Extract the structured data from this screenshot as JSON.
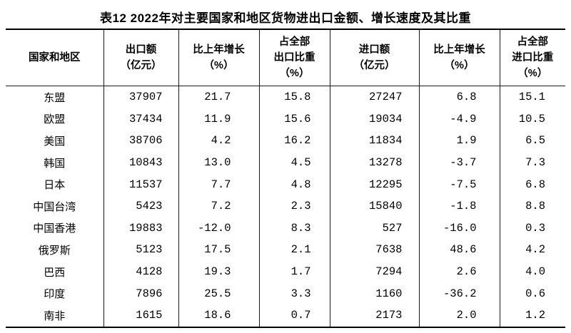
{
  "title": "表12  2022年对主要国家和地区货物进出口金额、增长速度及其比重",
  "colors": {
    "text": "#000000",
    "background": "#ffffff",
    "border": "#000000"
  },
  "table": {
    "row_keys": [
      "region",
      "export_amount",
      "export_growth",
      "export_share",
      "import_amount",
      "import_growth",
      "import_share"
    ],
    "headers": [
      {
        "lines": [
          "国家和地区"
        ]
      },
      {
        "lines": [
          "出口额",
          "（亿元）"
        ]
      },
      {
        "lines": [
          "比上年增长",
          "（%）"
        ]
      },
      {
        "lines": [
          "占全部",
          "出口比重",
          "（%）"
        ]
      },
      {
        "lines": [
          "进口额",
          "（亿元）"
        ]
      },
      {
        "lines": [
          "比上年增长",
          "（%）"
        ]
      },
      {
        "lines": [
          "占全部",
          "进口比重",
          "（%）"
        ]
      }
    ],
    "rows": [
      {
        "region": "东盟",
        "export_amount": "37907",
        "export_growth": "21.7",
        "export_share": "15.8",
        "import_amount": "27247",
        "import_growth": "6.8",
        "import_share": "15.1"
      },
      {
        "region": "欧盟",
        "export_amount": "37434",
        "export_growth": "11.9",
        "export_share": "15.6",
        "import_amount": "19034",
        "import_growth": "-4.9",
        "import_share": "10.5"
      },
      {
        "region": "美国",
        "export_amount": "38706",
        "export_growth": "4.2",
        "export_share": "16.2",
        "import_amount": "11834",
        "import_growth": "1.9",
        "import_share": "6.5"
      },
      {
        "region": "韩国",
        "export_amount": "10843",
        "export_growth": "13.0",
        "export_share": "4.5",
        "import_amount": "13278",
        "import_growth": "-3.7",
        "import_share": "7.3"
      },
      {
        "region": "日本",
        "export_amount": "11537",
        "export_growth": "7.7",
        "export_share": "4.8",
        "import_amount": "12295",
        "import_growth": "-7.5",
        "import_share": "6.8"
      },
      {
        "region": "中国台湾",
        "export_amount": "5423",
        "export_growth": "7.2",
        "export_share": "2.3",
        "import_amount": "15840",
        "import_growth": "-1.8",
        "import_share": "8.8"
      },
      {
        "region": "中国香港",
        "export_amount": "19883",
        "export_growth": "-12.0",
        "export_share": "8.3",
        "import_amount": "527",
        "import_growth": "-16.0",
        "import_share": "0.3"
      },
      {
        "region": "俄罗斯",
        "export_amount": "5123",
        "export_growth": "17.5",
        "export_share": "2.1",
        "import_amount": "7638",
        "import_growth": "48.6",
        "import_share": "4.2"
      },
      {
        "region": "巴西",
        "export_amount": "4128",
        "export_growth": "19.3",
        "export_share": "1.7",
        "import_amount": "7294",
        "import_growth": "2.6",
        "import_share": "4.0"
      },
      {
        "region": "印度",
        "export_amount": "7896",
        "export_growth": "25.5",
        "export_share": "3.3",
        "import_amount": "1160",
        "import_growth": "-36.2",
        "import_share": "0.6"
      },
      {
        "region": "南非",
        "export_amount": "1615",
        "export_growth": "18.6",
        "export_share": "0.7",
        "import_amount": "2173",
        "import_growth": "2.0",
        "import_share": "1.2"
      }
    ]
  }
}
